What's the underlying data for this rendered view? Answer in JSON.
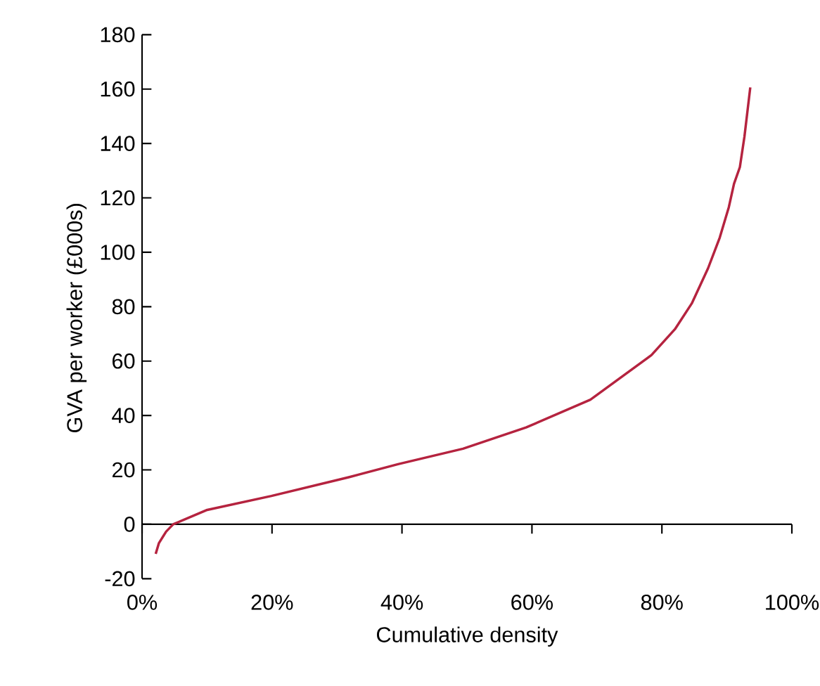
{
  "chart_data": {
    "type": "line",
    "xlabel": "Cumulative density",
    "ylabel": "GVA per worker (£000s)",
    "x": [
      2.1,
      2.6,
      3.7,
      4.8,
      9.9,
      19.9,
      31.8,
      39.4,
      49.4,
      59.1,
      69.0,
      78.4,
      82.0,
      84.6,
      87.1,
      88.9,
      90.3,
      91.1,
      92.0,
      92.7,
      93.6
    ],
    "series": [
      {
        "color": "#b5233f",
        "values": [
          -10.9,
          -6.9,
          -2.7,
          0,
          5.2,
          10.4,
          17.3,
          22.1,
          27.8,
          35.6,
          45.8,
          62.2,
          71.7,
          81.2,
          94.1,
          105.4,
          116.6,
          125.2,
          131.3,
          142.5,
          160.6
        ]
      }
    ],
    "xlim": [
      0,
      100
    ],
    "ylim": [
      -20,
      180
    ],
    "xticks": [
      {
        "value": 0,
        "label": "0%"
      },
      {
        "value": 20,
        "label": "20%"
      },
      {
        "value": 40,
        "label": "40%"
      },
      {
        "value": 60,
        "label": "60%"
      },
      {
        "value": 80,
        "label": "80%"
      },
      {
        "value": 100,
        "label": "100%"
      }
    ],
    "yticks": [
      -20,
      0,
      20,
      40,
      60,
      80,
      100,
      120,
      140,
      160,
      180
    ],
    "marker": "none",
    "line_style": "solid"
  }
}
